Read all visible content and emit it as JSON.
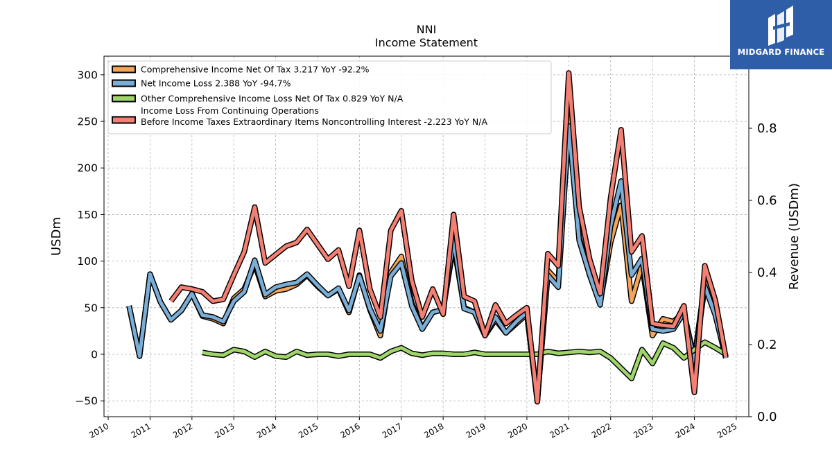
{
  "chart_data": {
    "type": "line",
    "title": "NNI",
    "subtitle": "Income Statement",
    "ylabel": "USDm",
    "y2label": "Revenue (USDm)",
    "ylim": [
      -67,
      320
    ],
    "y2lim": [
      0.0,
      1.0
    ],
    "xlim": [
      2009.9,
      2025.3
    ],
    "yticks": [
      -50,
      0,
      50,
      100,
      150,
      200,
      250,
      300
    ],
    "y2ticks": [
      0.0,
      0.2,
      0.4,
      0.6,
      0.8
    ],
    "xticks": [
      2010,
      2011,
      2012,
      2013,
      2014,
      2015,
      2016,
      2017,
      2018,
      2019,
      2020,
      2021,
      2022,
      2023,
      2024,
      2025
    ],
    "grid": true,
    "legend_position": "top-left",
    "series": [
      {
        "name": "Comprehensive Income Net Of Tax  3.217 YoY -92.2%",
        "color": "#f4a55a",
        "points": [
          [
            2010.5,
            52
          ],
          [
            2010.75,
            -2
          ],
          [
            2011.0,
            86
          ],
          [
            2011.25,
            56
          ],
          [
            2011.5,
            37
          ],
          [
            2011.75,
            47
          ],
          [
            2012.0,
            65
          ],
          [
            2012.25,
            41
          ],
          [
            2012.5,
            38
          ],
          [
            2012.75,
            33
          ],
          [
            2013.0,
            60
          ],
          [
            2013.25,
            70
          ],
          [
            2013.5,
            97
          ],
          [
            2013.75,
            62
          ],
          [
            2014.0,
            68
          ],
          [
            2014.25,
            70
          ],
          [
            2014.5,
            75
          ],
          [
            2014.75,
            85
          ],
          [
            2015.0,
            73
          ],
          [
            2015.25,
            63
          ],
          [
            2015.5,
            70
          ],
          [
            2015.75,
            45
          ],
          [
            2016.0,
            85
          ],
          [
            2016.25,
            48
          ],
          [
            2016.5,
            20
          ],
          [
            2016.75,
            88
          ],
          [
            2017.0,
            105
          ],
          [
            2017.25,
            55
          ],
          [
            2017.5,
            28
          ],
          [
            2017.75,
            45
          ],
          [
            2018.0,
            48
          ],
          [
            2018.25,
            118
          ],
          [
            2018.5,
            50
          ],
          [
            2018.75,
            45
          ],
          [
            2019.0,
            20
          ],
          [
            2019.25,
            37
          ],
          [
            2019.5,
            23
          ],
          [
            2019.75,
            33
          ],
          [
            2020.0,
            43
          ],
          [
            2020.25,
            -51
          ],
          [
            2020.5,
            90
          ],
          [
            2020.75,
            78
          ],
          [
            2021.0,
            255
          ],
          [
            2021.25,
            125
          ],
          [
            2021.5,
            85
          ],
          [
            2021.75,
            55
          ],
          [
            2022.0,
            120
          ],
          [
            2022.25,
            160
          ],
          [
            2022.5,
            57
          ],
          [
            2022.75,
            96
          ],
          [
            2023.0,
            20
          ],
          [
            2023.25,
            38
          ],
          [
            2023.5,
            35
          ],
          [
            2023.75,
            45
          ],
          [
            2024.0,
            -5
          ],
          [
            2024.25,
            78
          ],
          [
            2024.5,
            45
          ],
          [
            2024.75,
            -3
          ]
        ]
      },
      {
        "name": "Net Income Loss  2.388 YoY -94.7%",
        "color": "#7aaed6",
        "points": [
          [
            2010.5,
            52
          ],
          [
            2010.75,
            -2
          ],
          [
            2011.0,
            86
          ],
          [
            2011.25,
            56
          ],
          [
            2011.5,
            37
          ],
          [
            2011.75,
            47
          ],
          [
            2012.0,
            65
          ],
          [
            2012.25,
            42
          ],
          [
            2012.5,
            40
          ],
          [
            2012.75,
            35
          ],
          [
            2013.0,
            57
          ],
          [
            2013.25,
            67
          ],
          [
            2013.5,
            101
          ],
          [
            2013.75,
            64
          ],
          [
            2014.0,
            72
          ],
          [
            2014.25,
            75
          ],
          [
            2014.5,
            77
          ],
          [
            2014.75,
            86
          ],
          [
            2015.0,
            74
          ],
          [
            2015.25,
            63
          ],
          [
            2015.5,
            71
          ],
          [
            2015.75,
            47
          ],
          [
            2016.0,
            84
          ],
          [
            2016.25,
            49
          ],
          [
            2016.5,
            25
          ],
          [
            2016.75,
            84
          ],
          [
            2017.0,
            98
          ],
          [
            2017.25,
            52
          ],
          [
            2017.5,
            27
          ],
          [
            2017.75,
            45
          ],
          [
            2018.0,
            48
          ],
          [
            2018.25,
            123
          ],
          [
            2018.5,
            49
          ],
          [
            2018.75,
            45
          ],
          [
            2019.0,
            21
          ],
          [
            2019.25,
            40
          ],
          [
            2019.5,
            23
          ],
          [
            2019.75,
            35
          ],
          [
            2020.0,
            45
          ],
          [
            2020.25,
            -49
          ],
          [
            2020.5,
            85
          ],
          [
            2020.75,
            72
          ],
          [
            2021.0,
            245
          ],
          [
            2021.25,
            122
          ],
          [
            2021.5,
            85
          ],
          [
            2021.75,
            53
          ],
          [
            2022.0,
            138
          ],
          [
            2022.25,
            186
          ],
          [
            2022.5,
            85
          ],
          [
            2022.75,
            103
          ],
          [
            2023.0,
            27
          ],
          [
            2023.25,
            25
          ],
          [
            2023.5,
            27
          ],
          [
            2023.75,
            45
          ],
          [
            2024.0,
            -8
          ],
          [
            2024.25,
            73
          ],
          [
            2024.5,
            42
          ],
          [
            2024.75,
            -4
          ]
        ]
      },
      {
        "name": "Other Comprehensive Income Loss Net Of Tax  0.829 YoY N/A",
        "color": "#9fd56a",
        "points": [
          [
            2012.25,
            2
          ],
          [
            2012.5,
            0
          ],
          [
            2012.75,
            -1
          ],
          [
            2013.0,
            5
          ],
          [
            2013.25,
            3
          ],
          [
            2013.5,
            -3
          ],
          [
            2013.75,
            3
          ],
          [
            2014.0,
            -2
          ],
          [
            2014.25,
            -3
          ],
          [
            2014.5,
            3
          ],
          [
            2014.75,
            -1
          ],
          [
            2015.0,
            0
          ],
          [
            2015.25,
            0
          ],
          [
            2015.5,
            -2
          ],
          [
            2015.75,
            0
          ],
          [
            2016.0,
            0
          ],
          [
            2016.25,
            0
          ],
          [
            2016.5,
            -4
          ],
          [
            2016.75,
            3
          ],
          [
            2017.0,
            7
          ],
          [
            2017.25,
            1
          ],
          [
            2017.5,
            -1
          ],
          [
            2017.75,
            1
          ],
          [
            2018.0,
            1
          ],
          [
            2018.25,
            0
          ],
          [
            2018.5,
            0
          ],
          [
            2018.75,
            2
          ],
          [
            2019.0,
            0
          ],
          [
            2019.25,
            0
          ],
          [
            2019.5,
            0
          ],
          [
            2019.75,
            0
          ],
          [
            2020.0,
            0
          ],
          [
            2020.25,
            0
          ],
          [
            2020.5,
            3
          ],
          [
            2020.75,
            1
          ],
          [
            2021.0,
            2
          ],
          [
            2021.25,
            3
          ],
          [
            2021.5,
            2
          ],
          [
            2021.75,
            3
          ],
          [
            2022.0,
            -4
          ],
          [
            2022.25,
            -15
          ],
          [
            2022.5,
            -26
          ],
          [
            2022.75,
            5
          ],
          [
            2023.0,
            -10
          ],
          [
            2023.25,
            12
          ],
          [
            2023.5,
            7
          ],
          [
            2023.75,
            -4
          ],
          [
            2024.0,
            5
          ],
          [
            2024.25,
            13
          ],
          [
            2024.5,
            7
          ],
          [
            2024.75,
            0
          ]
        ]
      },
      {
        "name": "Income Loss From Continuing Operations\nBefore Income Taxes Extraordinary Items Noncontrolling Interest  -2.223 YoY N/A",
        "color": "#f47f73",
        "points": [
          [
            2011.5,
            57
          ],
          [
            2011.75,
            72
          ],
          [
            2012.0,
            70
          ],
          [
            2012.25,
            67
          ],
          [
            2012.5,
            57
          ],
          [
            2012.75,
            59
          ],
          [
            2013.0,
            85
          ],
          [
            2013.25,
            110
          ],
          [
            2013.5,
            158
          ],
          [
            2013.75,
            98
          ],
          [
            2014.0,
            107
          ],
          [
            2014.25,
            116
          ],
          [
            2014.5,
            120
          ],
          [
            2014.75,
            134
          ],
          [
            2015.0,
            118
          ],
          [
            2015.25,
            102
          ],
          [
            2015.5,
            112
          ],
          [
            2015.75,
            73
          ],
          [
            2016.0,
            133
          ],
          [
            2016.25,
            70
          ],
          [
            2016.5,
            40
          ],
          [
            2016.75,
            133
          ],
          [
            2017.0,
            154
          ],
          [
            2017.25,
            79
          ],
          [
            2017.5,
            40
          ],
          [
            2017.75,
            70
          ],
          [
            2018.0,
            43
          ],
          [
            2018.25,
            150
          ],
          [
            2018.5,
            62
          ],
          [
            2018.75,
            57
          ],
          [
            2019.0,
            20
          ],
          [
            2019.25,
            53
          ],
          [
            2019.5,
            33
          ],
          [
            2019.75,
            42
          ],
          [
            2020.0,
            50
          ],
          [
            2020.25,
            -51
          ],
          [
            2020.5,
            108
          ],
          [
            2020.75,
            95
          ],
          [
            2021.0,
            302
          ],
          [
            2021.25,
            158
          ],
          [
            2021.5,
            102
          ],
          [
            2021.75,
            65
          ],
          [
            2022.0,
            168
          ],
          [
            2022.25,
            241
          ],
          [
            2022.5,
            110
          ],
          [
            2022.75,
            127
          ],
          [
            2023.0,
            33
          ],
          [
            2023.25,
            31
          ],
          [
            2023.5,
            30
          ],
          [
            2023.75,
            52
          ],
          [
            2024.0,
            -41
          ],
          [
            2024.25,
            95
          ],
          [
            2024.5,
            58
          ],
          [
            2024.75,
            -3
          ]
        ]
      }
    ]
  },
  "logo": {
    "brand": "MIDGARD FINANCE",
    "bg_color": "#2f5ea8"
  }
}
